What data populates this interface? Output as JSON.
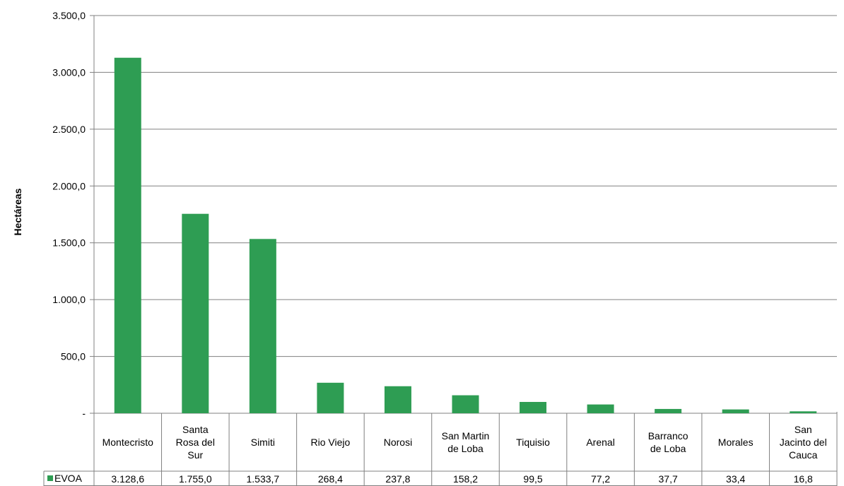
{
  "chart_data": {
    "type": "bar",
    "ylabel": "Hectáreas",
    "ylim": [
      0,
      3500
    ],
    "yticks": [
      "-",
      "500,0",
      "1.000,0",
      "1.500,0",
      "2.000,0",
      "2.500,0",
      "3.000,0",
      "3.500,0"
    ],
    "grid": true,
    "categories": [
      [
        "Montecristo"
      ],
      [
        "Santa",
        "Rosa del",
        "Sur"
      ],
      [
        "Simiti"
      ],
      [
        "Rio Viejo"
      ],
      [
        "Norosi"
      ],
      [
        "San Martin",
        "de Loba"
      ],
      [
        "Tiquisio"
      ],
      [
        "Arenal"
      ],
      [
        "Barranco",
        "de Loba"
      ],
      [
        "Morales"
      ],
      [
        "San",
        "Jacinto del",
        "Cauca"
      ]
    ],
    "series": [
      {
        "name": "EVOA",
        "color": "#2e9d53",
        "values": [
          3128.6,
          1755.0,
          1533.7,
          268.4,
          237.8,
          158.2,
          99.5,
          77.2,
          37.7,
          33.4,
          16.8
        ],
        "value_labels": [
          "3.128,6",
          "1.755,0",
          "1.533,7",
          "268,4",
          "237,8",
          "158,2",
          "99,5",
          "77,2",
          "37,7",
          "33,4",
          "16,8"
        ]
      }
    ],
    "data_table": true
  }
}
